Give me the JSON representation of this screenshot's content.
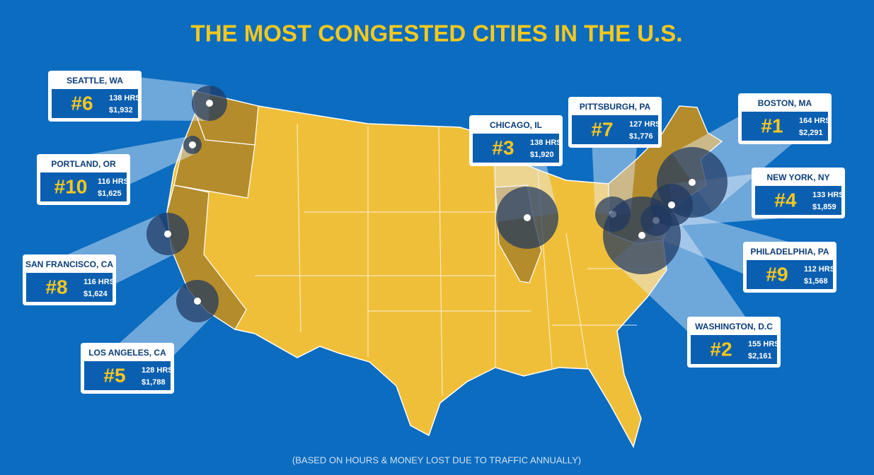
{
  "title": "THE MOST CONGESTED CITIES IN THE U.S.",
  "footnote": "(BASED ON HOURS & MONEY LOST DUE TO TRAFFIC ANNUALLY)",
  "cities": [
    {
      "name": "SEATTLE, WA",
      "rank": "#6",
      "hours": "138 HRS",
      "cost": "$1,932"
    },
    {
      "name": "PORTLAND, OR",
      "rank": "#10",
      "hours": "116 HRS",
      "cost": "$1,625"
    },
    {
      "name": "SAN FRANCISCO, CA",
      "rank": "#8",
      "hours": "116 HRS",
      "cost": "$1,624"
    },
    {
      "name": "LOS ANGELES, CA",
      "rank": "#5",
      "hours": "128 HRS",
      "cost": "$1,788"
    },
    {
      "name": "CHICAGO, IL",
      "rank": "#3",
      "hours": "138 HRS",
      "cost": "$1,920"
    },
    {
      "name": "PITTSBURGH, PA",
      "rank": "#7",
      "hours": "127 HRS",
      "cost": "$1,776"
    },
    {
      "name": "BOSTON, MA",
      "rank": "#1",
      "hours": "164 HRS",
      "cost": "$2,291"
    },
    {
      "name": "NEW YORK, NY",
      "rank": "#4",
      "hours": "133 HRS",
      "cost": "$1,859"
    },
    {
      "name": "PHILADELPHIA, PA",
      "rank": "#9",
      "hours": "112 HRS",
      "cost": "$1,568"
    },
    {
      "name": "WASHINGTON, D.C",
      "rank": "#2",
      "hours": "155 HRS",
      "cost": "$2,161"
    }
  ]
}
